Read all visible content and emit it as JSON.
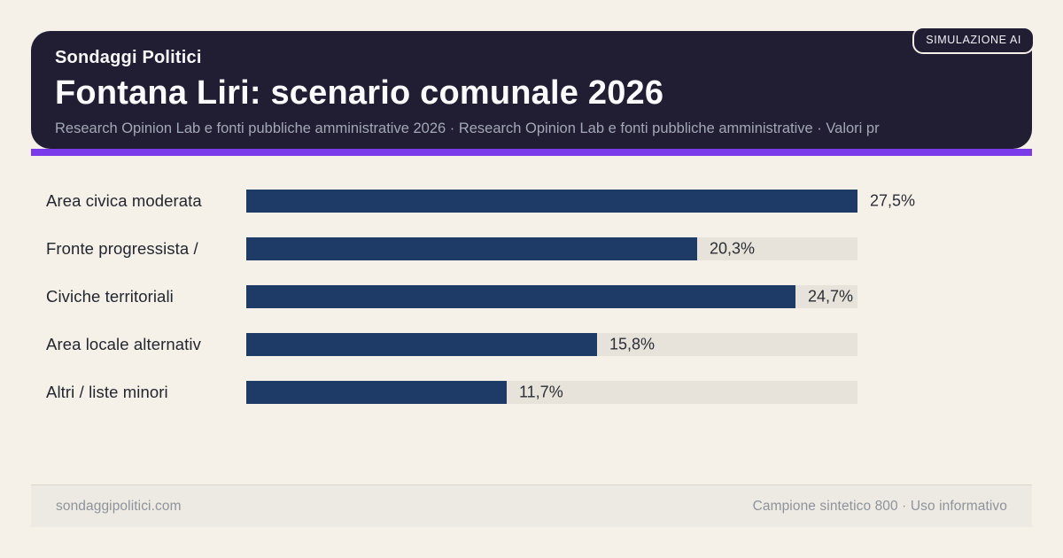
{
  "badge": {
    "label": "SIMULAZIONE AI"
  },
  "header": {
    "kicker": "Sondaggi Politici",
    "title": "Fontana Liri: scenario comunale 2026",
    "subtitle": "Research Opinion Lab e fonti pubbliche amministrative 2026 · Research Opinion Lab e fonti pubbliche amministrative · Valori pr"
  },
  "chart_data": {
    "type": "bar",
    "orientation": "horizontal",
    "title": "Fontana Liri: scenario comunale 2026",
    "categories": [
      "Area civica moderata",
      "Fronte progressista /",
      "Civiche territoriali",
      "Area locale alternativ",
      "Altri / liste minori"
    ],
    "values": [
      27.5,
      20.3,
      24.7,
      15.8,
      11.7
    ],
    "value_labels": [
      "27,5%",
      "20,3%",
      "24,7%",
      "15,8%",
      "11,7%"
    ],
    "unit": "%",
    "decimal_separator": ",",
    "xlim": [
      0,
      27.5
    ],
    "grid": false,
    "legend": false
  },
  "footer": {
    "left": "sondaggipolitici.com",
    "right": "Campione sintetico 800 · Uso informativo"
  },
  "colors": {
    "background": "#f5f1e9",
    "header_bg": "#211d33",
    "accent": "#7a3bea",
    "bar_fill": "#1e3a66",
    "bar_track": "#e7e3da",
    "label_text": "#23262e",
    "footer_bg": "#edeae3",
    "footer_text": "#8e939b"
  }
}
